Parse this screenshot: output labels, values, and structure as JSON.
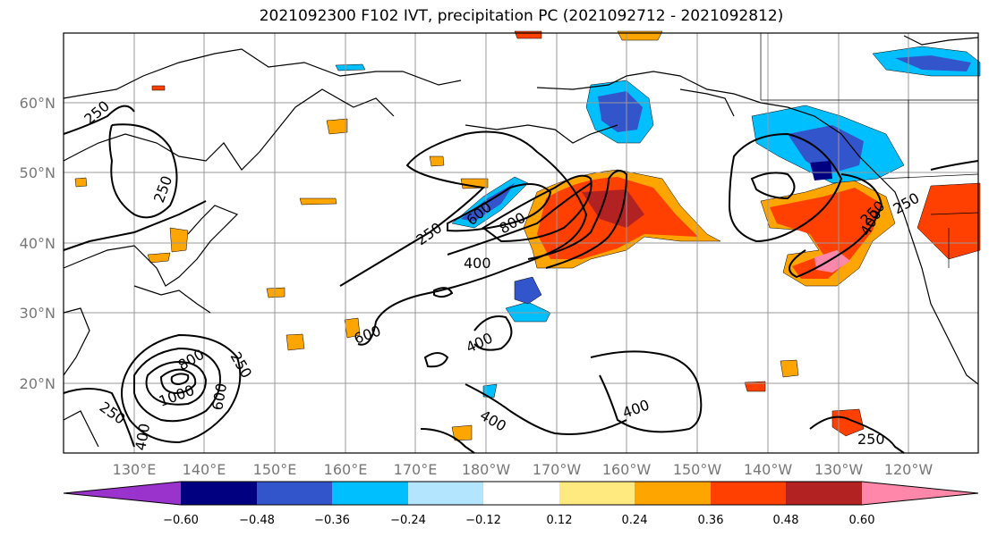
{
  "title": "2021092300 F102 IVT, precipitation PC (2021092712 - 2021092812)",
  "lon_labels": [
    "130°E",
    "140°E",
    "150°E",
    "160°E",
    "170°E",
    "180°W",
    "170°W",
    "160°W",
    "150°W",
    "140°W",
    "130°W",
    "120°W"
  ],
  "lat_labels": [
    "60°N",
    "50°N",
    "40°N",
    "30°N",
    "20°N"
  ],
  "contour_labels": [
    "250",
    "250",
    "250",
    "250",
    "600",
    "800",
    "400",
    "600",
    "400",
    "800",
    "1000",
    "600",
    "250",
    "250",
    "400",
    "400",
    "400",
    "250",
    "400",
    "250"
  ],
  "colorbar": {
    "tick_labels": [
      "−0.60",
      "−0.48",
      "−0.36",
      "−0.24",
      "−0.12",
      "0.12",
      "0.24",
      "0.36",
      "0.48",
      "0.60"
    ],
    "colors": [
      "#9933cc",
      "#000080",
      "#3355cc",
      "#00bfff",
      "#b3e5ff",
      "#ffffff",
      "#ffea80",
      "#ffa500",
      "#ff4000",
      "#b22222",
      "#ff88aa"
    ]
  }
}
